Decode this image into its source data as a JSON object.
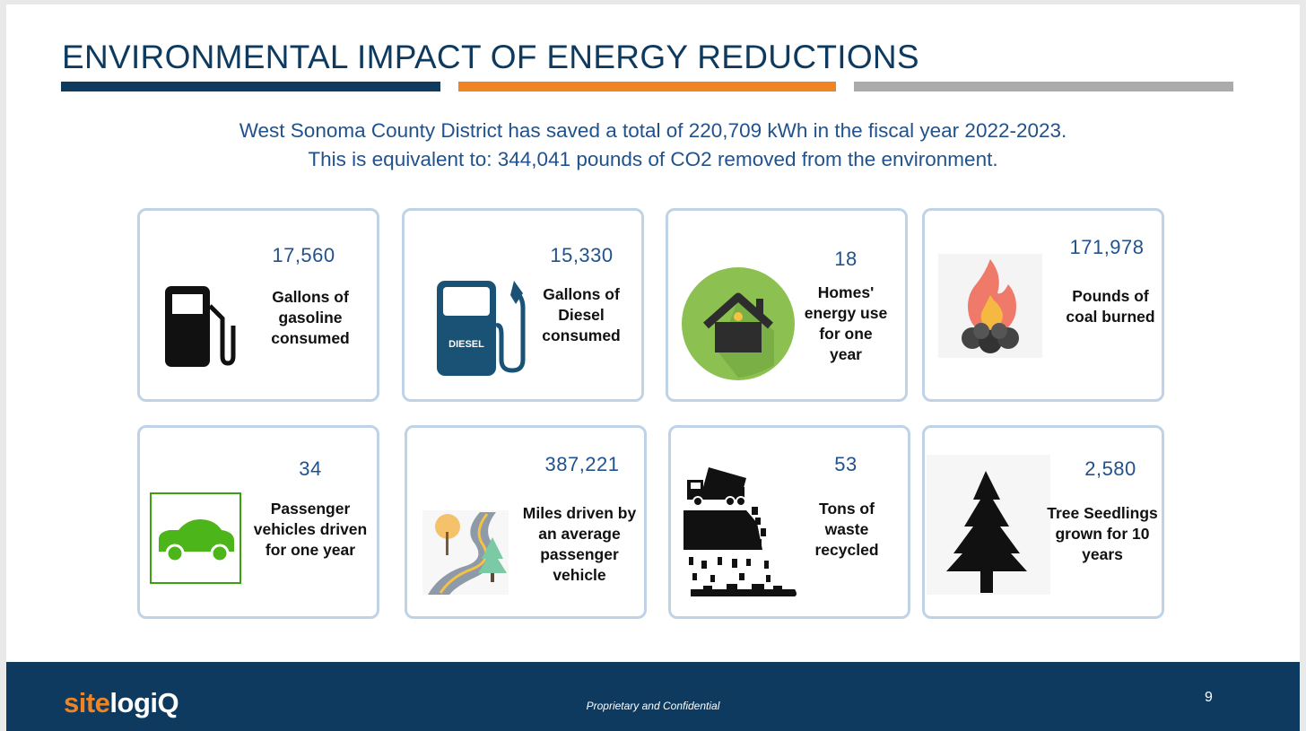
{
  "slide": {
    "title": "ENVIRONMENTAL IMPACT OF ENERGY REDUCTIONS",
    "subtitle_line1": "West Sonoma County District has saved a total of 220,709 kWh in the fiscal year 2022-2023.",
    "subtitle_line2": "This is equivalent to: 344,041 pounds of CO2 removed from the environment."
  },
  "colors": {
    "navy": "#0d3a5e",
    "orange": "#ef8424",
    "gray": "#ababab",
    "text_blue": "#21528c",
    "card_border": "#c0d2e6"
  },
  "cards": [
    {
      "value": "17,560",
      "label": "Gallons of gasoline consumed",
      "icon": "gas-pump-icon"
    },
    {
      "value": "15,330",
      "label": "Gallons of Diesel consumed",
      "icon": "diesel-pump-icon",
      "icon_text": "DIESEL"
    },
    {
      "value": "18",
      "label": "Homes' energy use for one year",
      "icon": "house-icon"
    },
    {
      "value": "171,978",
      "label": "Pounds of coal burned",
      "icon": "fire-coal-icon"
    },
    {
      "value": "34",
      "label": "Passenger vehicles driven for one year",
      "icon": "car-icon"
    },
    {
      "value": "387,221",
      "label": "Miles driven by an average passenger vehicle",
      "icon": "road-icon"
    },
    {
      "value": "53",
      "label": "Tons of waste recycled",
      "icon": "dump-truck-icon"
    },
    {
      "value": "2,580",
      "label": "Tree Seedlings grown for 10 years",
      "icon": "tree-icon"
    }
  ],
  "footer": {
    "logo_part1": "site",
    "logo_part2": "logiQ",
    "confidential": "Proprietary and Confidential",
    "page_number": "9"
  }
}
